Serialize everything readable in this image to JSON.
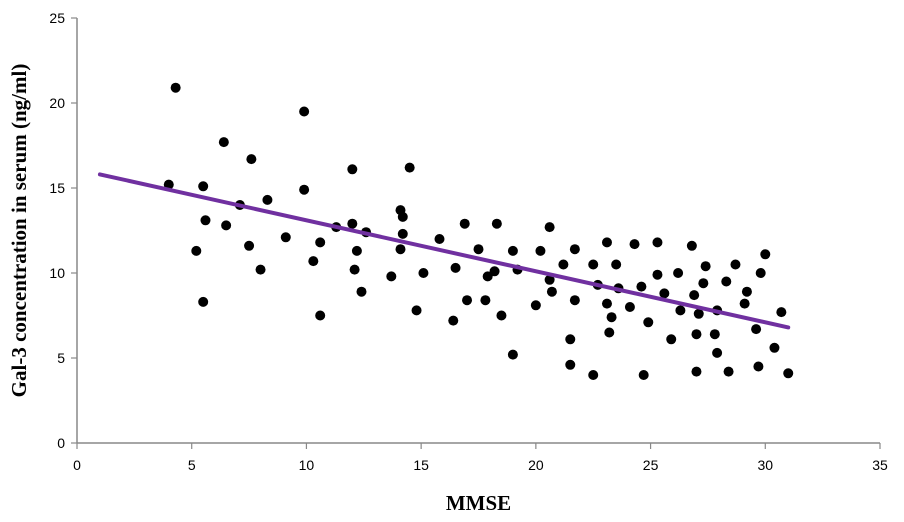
{
  "chart_data": {
    "type": "scatter",
    "xlabel": "MMSE",
    "ylabel": "Gal-3 concentration in serum (ng/ml)",
    "xlim": [
      0,
      35
    ],
    "ylim": [
      0,
      25
    ],
    "xticks": [
      0,
      5,
      10,
      15,
      20,
      25,
      30,
      35
    ],
    "yticks": [
      0,
      5,
      10,
      15,
      20,
      25
    ],
    "grid": false,
    "legend": "none",
    "point_color": "#000000",
    "trendline": {
      "x": [
        1,
        31
      ],
      "y": [
        15.8,
        6.8
      ],
      "color": "#7030a0"
    },
    "points": [
      [
        4.0,
        15.2
      ],
      [
        4.3,
        20.9
      ],
      [
        5.2,
        11.3
      ],
      [
        5.5,
        15.1
      ],
      [
        5.6,
        13.1
      ],
      [
        5.5,
        8.3
      ],
      [
        6.4,
        17.7
      ],
      [
        6.5,
        12.8
      ],
      [
        7.1,
        14.0
      ],
      [
        7.5,
        11.6
      ],
      [
        7.6,
        16.7
      ],
      [
        8.0,
        10.2
      ],
      [
        8.3,
        14.3
      ],
      [
        9.1,
        12.1
      ],
      [
        9.9,
        19.5
      ],
      [
        9.9,
        14.9
      ],
      [
        10.3,
        10.7
      ],
      [
        10.6,
        11.8
      ],
      [
        10.6,
        7.5
      ],
      [
        11.3,
        12.7
      ],
      [
        12.0,
        16.1
      ],
      [
        12.0,
        12.9
      ],
      [
        12.1,
        10.2
      ],
      [
        12.2,
        11.3
      ],
      [
        12.4,
        8.9
      ],
      [
        12.6,
        12.4
      ],
      [
        13.7,
        9.8
      ],
      [
        14.1,
        13.7
      ],
      [
        14.2,
        13.3
      ],
      [
        14.2,
        12.3
      ],
      [
        14.1,
        11.4
      ],
      [
        14.5,
        16.2
      ],
      [
        14.8,
        7.8
      ],
      [
        15.1,
        10.0
      ],
      [
        15.8,
        12.0
      ],
      [
        16.4,
        7.2
      ],
      [
        16.5,
        10.3
      ],
      [
        16.9,
        12.9
      ],
      [
        17.0,
        8.4
      ],
      [
        17.5,
        11.4
      ],
      [
        17.9,
        9.8
      ],
      [
        17.8,
        8.4
      ],
      [
        18.3,
        12.9
      ],
      [
        18.2,
        10.1
      ],
      [
        18.5,
        7.5
      ],
      [
        19.0,
        11.3
      ],
      [
        19.2,
        10.2
      ],
      [
        19.0,
        5.2
      ],
      [
        20.0,
        8.1
      ],
      [
        20.2,
        11.3
      ],
      [
        20.6,
        12.7
      ],
      [
        20.6,
        9.6
      ],
      [
        20.7,
        8.9
      ],
      [
        21.2,
        10.5
      ],
      [
        21.5,
        6.1
      ],
      [
        21.7,
        11.4
      ],
      [
        21.7,
        8.4
      ],
      [
        21.5,
        4.6
      ],
      [
        22.5,
        10.5
      ],
      [
        22.7,
        9.3
      ],
      [
        22.5,
        4.0
      ],
      [
        23.1,
        11.8
      ],
      [
        23.1,
        8.2
      ],
      [
        23.2,
        6.5
      ],
      [
        23.3,
        7.4
      ],
      [
        23.5,
        10.5
      ],
      [
        23.6,
        9.1
      ],
      [
        24.1,
        8.0
      ],
      [
        24.3,
        11.7
      ],
      [
        24.6,
        9.2
      ],
      [
        24.9,
        7.1
      ],
      [
        24.7,
        4.0
      ],
      [
        25.3,
        11.8
      ],
      [
        25.3,
        9.9
      ],
      [
        25.6,
        8.8
      ],
      [
        25.9,
        6.1
      ],
      [
        26.2,
        10.0
      ],
      [
        26.3,
        7.8
      ],
      [
        26.8,
        11.6
      ],
      [
        26.9,
        8.7
      ],
      [
        27.0,
        6.4
      ],
      [
        27.1,
        7.6
      ],
      [
        27.0,
        4.2
      ],
      [
        27.3,
        9.4
      ],
      [
        27.4,
        10.4
      ],
      [
        27.9,
        7.8
      ],
      [
        27.8,
        6.4
      ],
      [
        27.9,
        5.3
      ],
      [
        28.3,
        9.5
      ],
      [
        28.4,
        4.2
      ],
      [
        28.7,
        10.5
      ],
      [
        29.1,
        8.2
      ],
      [
        29.2,
        8.9
      ],
      [
        29.6,
        6.7
      ],
      [
        29.7,
        4.5
      ],
      [
        29.8,
        10.0
      ],
      [
        30.0,
        11.1
      ],
      [
        30.4,
        5.6
      ],
      [
        30.7,
        7.7
      ],
      [
        31.0,
        4.1
      ]
    ]
  }
}
